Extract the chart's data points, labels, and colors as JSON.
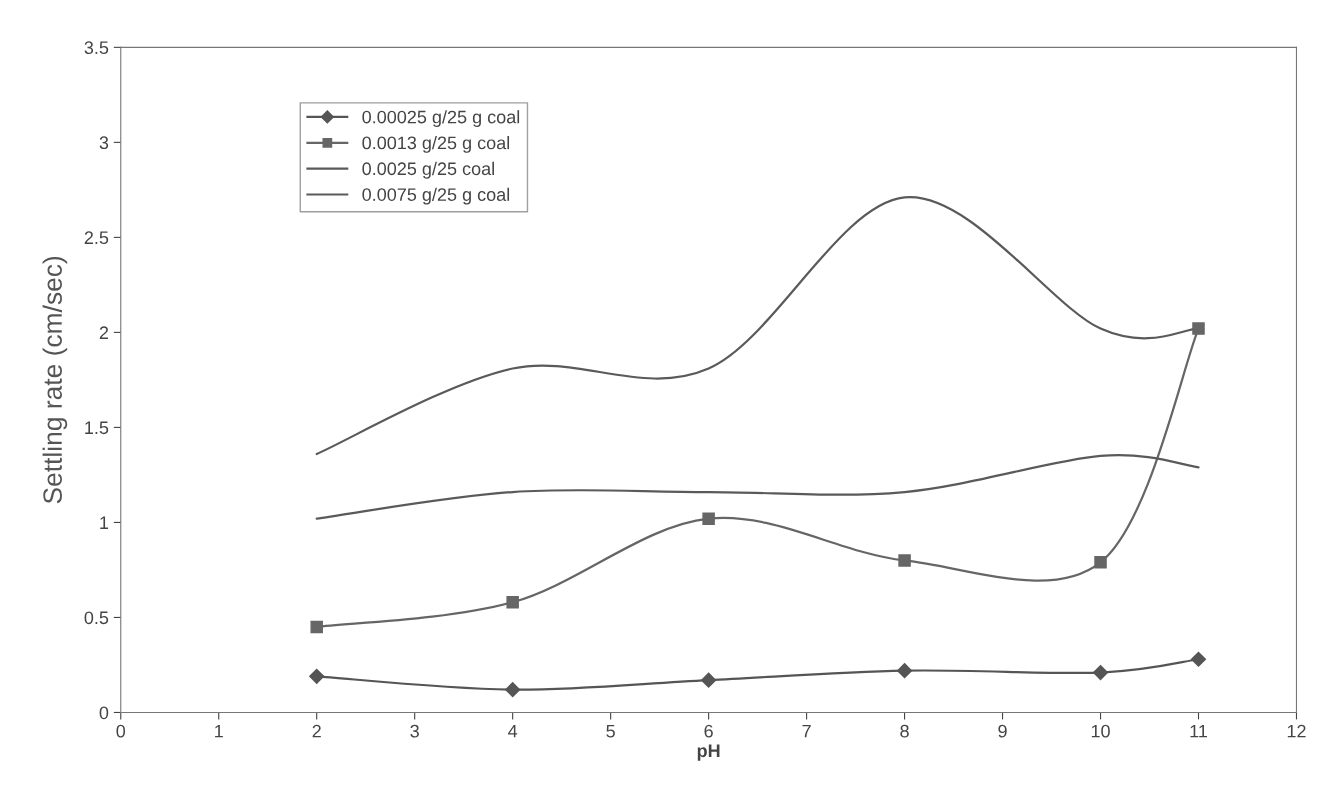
{
  "chart_data": {
    "type": "line",
    "xlabel": "pH",
    "ylabel": "Settling rate (cm/sec)",
    "x": [
      2,
      4,
      6,
      8,
      10,
      11
    ],
    "xlim": [
      0,
      12
    ],
    "xticks": [
      0,
      1,
      2,
      3,
      4,
      5,
      6,
      7,
      8,
      9,
      10,
      11,
      12
    ],
    "ylim": [
      0,
      3.5
    ],
    "yticks": [
      0,
      0.5,
      1,
      1.5,
      2,
      2.5,
      3,
      3.5
    ],
    "grid": false,
    "legend": "top left",
    "line_style": "solid",
    "series": [
      {
        "name": "0.00025 g/25 g coal",
        "color": "#555555",
        "marker": "diamond",
        "values": [
          0.19,
          0.12,
          0.17,
          0.22,
          0.21,
          0.28
        ]
      },
      {
        "name": "0.0013 g/25 g coal",
        "color": "#666666",
        "marker": "square",
        "values": [
          0.45,
          0.58,
          1.02,
          0.8,
          0.79,
          2.02
        ]
      },
      {
        "name": "0.0025 g/25 coal",
        "color": "#5a5a5a",
        "marker": "none",
        "values": [
          1.02,
          1.16,
          1.16,
          1.16,
          1.35,
          1.29
        ]
      },
      {
        "name": "0.0075 g/25 g coal",
        "color": "#5a5a5a",
        "marker": "none",
        "values": [
          1.36,
          1.81,
          1.81,
          2.71,
          2.02,
          2.02
        ]
      }
    ]
  }
}
